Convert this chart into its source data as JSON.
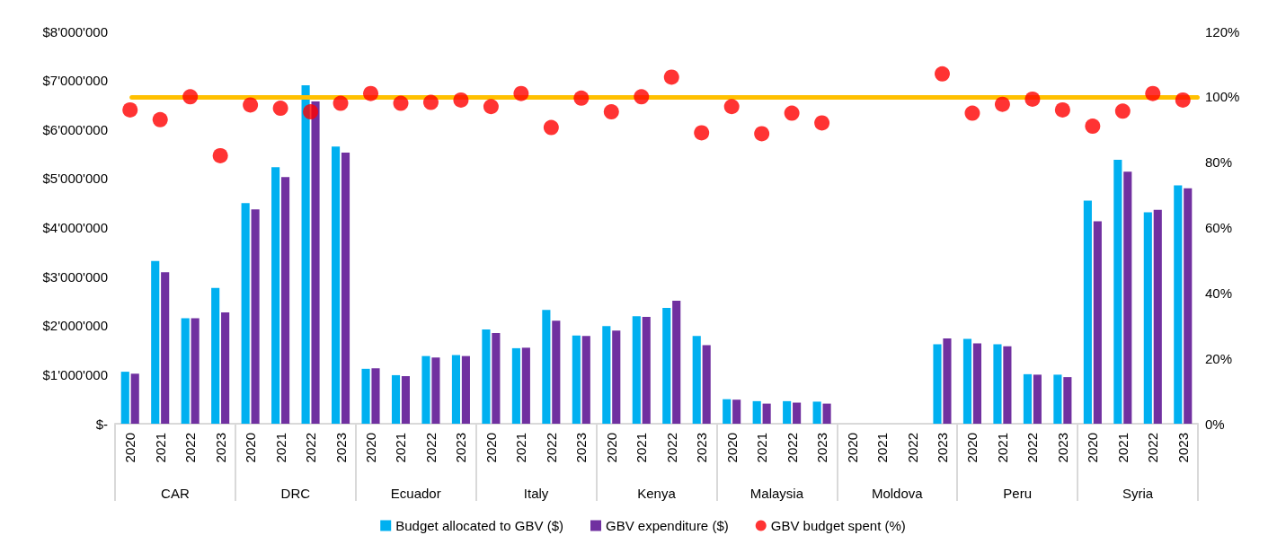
{
  "chart_data": {
    "type": "bar",
    "categories": [
      "2020",
      "2021",
      "2022",
      "2023",
      "2020",
      "2021",
      "2022",
      "2023",
      "2020",
      "2021",
      "2022",
      "2023",
      "2020",
      "2021",
      "2022",
      "2023",
      "2020",
      "2021",
      "2022",
      "2023",
      "2020",
      "2021",
      "2022",
      "2023",
      "2020",
      "2021",
      "2022",
      "2023",
      "2020",
      "2021",
      "2022",
      "2023",
      "2020",
      "2021",
      "2022",
      "2023"
    ],
    "annotations": [
      "CAR",
      "DRC",
      "Ecuador",
      "Italy",
      "Kenya",
      "Malaysia",
      "Moldova",
      "Peru",
      "Syria"
    ],
    "series": [
      {
        "name": "Budget allocated to GBV ($)",
        "color": "#00b0f0",
        "values": [
          1060000,
          3320000,
          2150000,
          2770000,
          4500000,
          5230000,
          6900000,
          5650000,
          1120000,
          990000,
          1380000,
          1400000,
          1920000,
          1540000,
          2320000,
          1800000,
          1990000,
          2190000,
          2360000,
          1790000,
          500000,
          460000,
          460000,
          450000,
          null,
          null,
          null,
          1620000,
          1730000,
          1620000,
          1010000,
          1000000,
          4550000,
          5380000,
          4310000,
          4860000
        ]
      },
      {
        "name": "GBV expenditure ($)",
        "color": "#7030a0",
        "values": [
          1020000,
          3090000,
          2150000,
          2270000,
          4370000,
          5030000,
          6570000,
          5530000,
          1130000,
          970000,
          1350000,
          1380000,
          1850000,
          1550000,
          2100000,
          1790000,
          1900000,
          2180000,
          2510000,
          1600000,
          490000,
          410000,
          430000,
          410000,
          null,
          null,
          null,
          1740000,
          1640000,
          1580000,
          1000000,
          950000,
          4130000,
          5140000,
          4360000,
          4800000
        ]
      },
      {
        "name": "GBV budget spent (%)",
        "type": "scatter",
        "axis": "y2",
        "color": "#ff0000",
        "values": [
          96,
          93,
          100,
          82,
          97.5,
          96.5,
          95.4,
          98,
          101,
          98,
          98.3,
          99,
          97,
          101,
          90.6,
          99.6,
          95.4,
          100,
          106,
          89,
          97,
          88.7,
          95,
          92,
          null,
          null,
          null,
          107,
          95,
          97.7,
          99.3,
          96,
          91,
          95.6,
          101,
          99
        ]
      }
    ],
    "ylim": [
      0,
      8000000
    ],
    "yticks": [
      {
        "value": 0,
        "label": "$-"
      },
      {
        "value": 1000000,
        "label": "$1'000'000"
      },
      {
        "value": 2000000,
        "label": "$2'000'000"
      },
      {
        "value": 3000000,
        "label": "$3'000'000"
      },
      {
        "value": 4000000,
        "label": "$4'000'000"
      },
      {
        "value": 5000000,
        "label": "$5'000'000"
      },
      {
        "value": 6000000,
        "label": "$6'000'000"
      },
      {
        "value": 7000000,
        "label": "$7'000'000"
      },
      {
        "value": 8000000,
        "label": "$8'000'000"
      }
    ],
    "y2lim": [
      0,
      120
    ],
    "y2ticks": [
      {
        "value": 0,
        "label": "0%"
      },
      {
        "value": 20,
        "label": "20%"
      },
      {
        "value": 40,
        "label": "40%"
      },
      {
        "value": 60,
        "label": "60%"
      },
      {
        "value": 80,
        "label": "80%"
      },
      {
        "value": 100,
        "label": "100%"
      },
      {
        "value": 120,
        "label": "120%"
      }
    ],
    "ref_lines": [
      {
        "axis": "y2",
        "value": 100,
        "color": "#ffc000"
      }
    ],
    "marker": "circle",
    "grid": false,
    "legend": "bottom"
  }
}
